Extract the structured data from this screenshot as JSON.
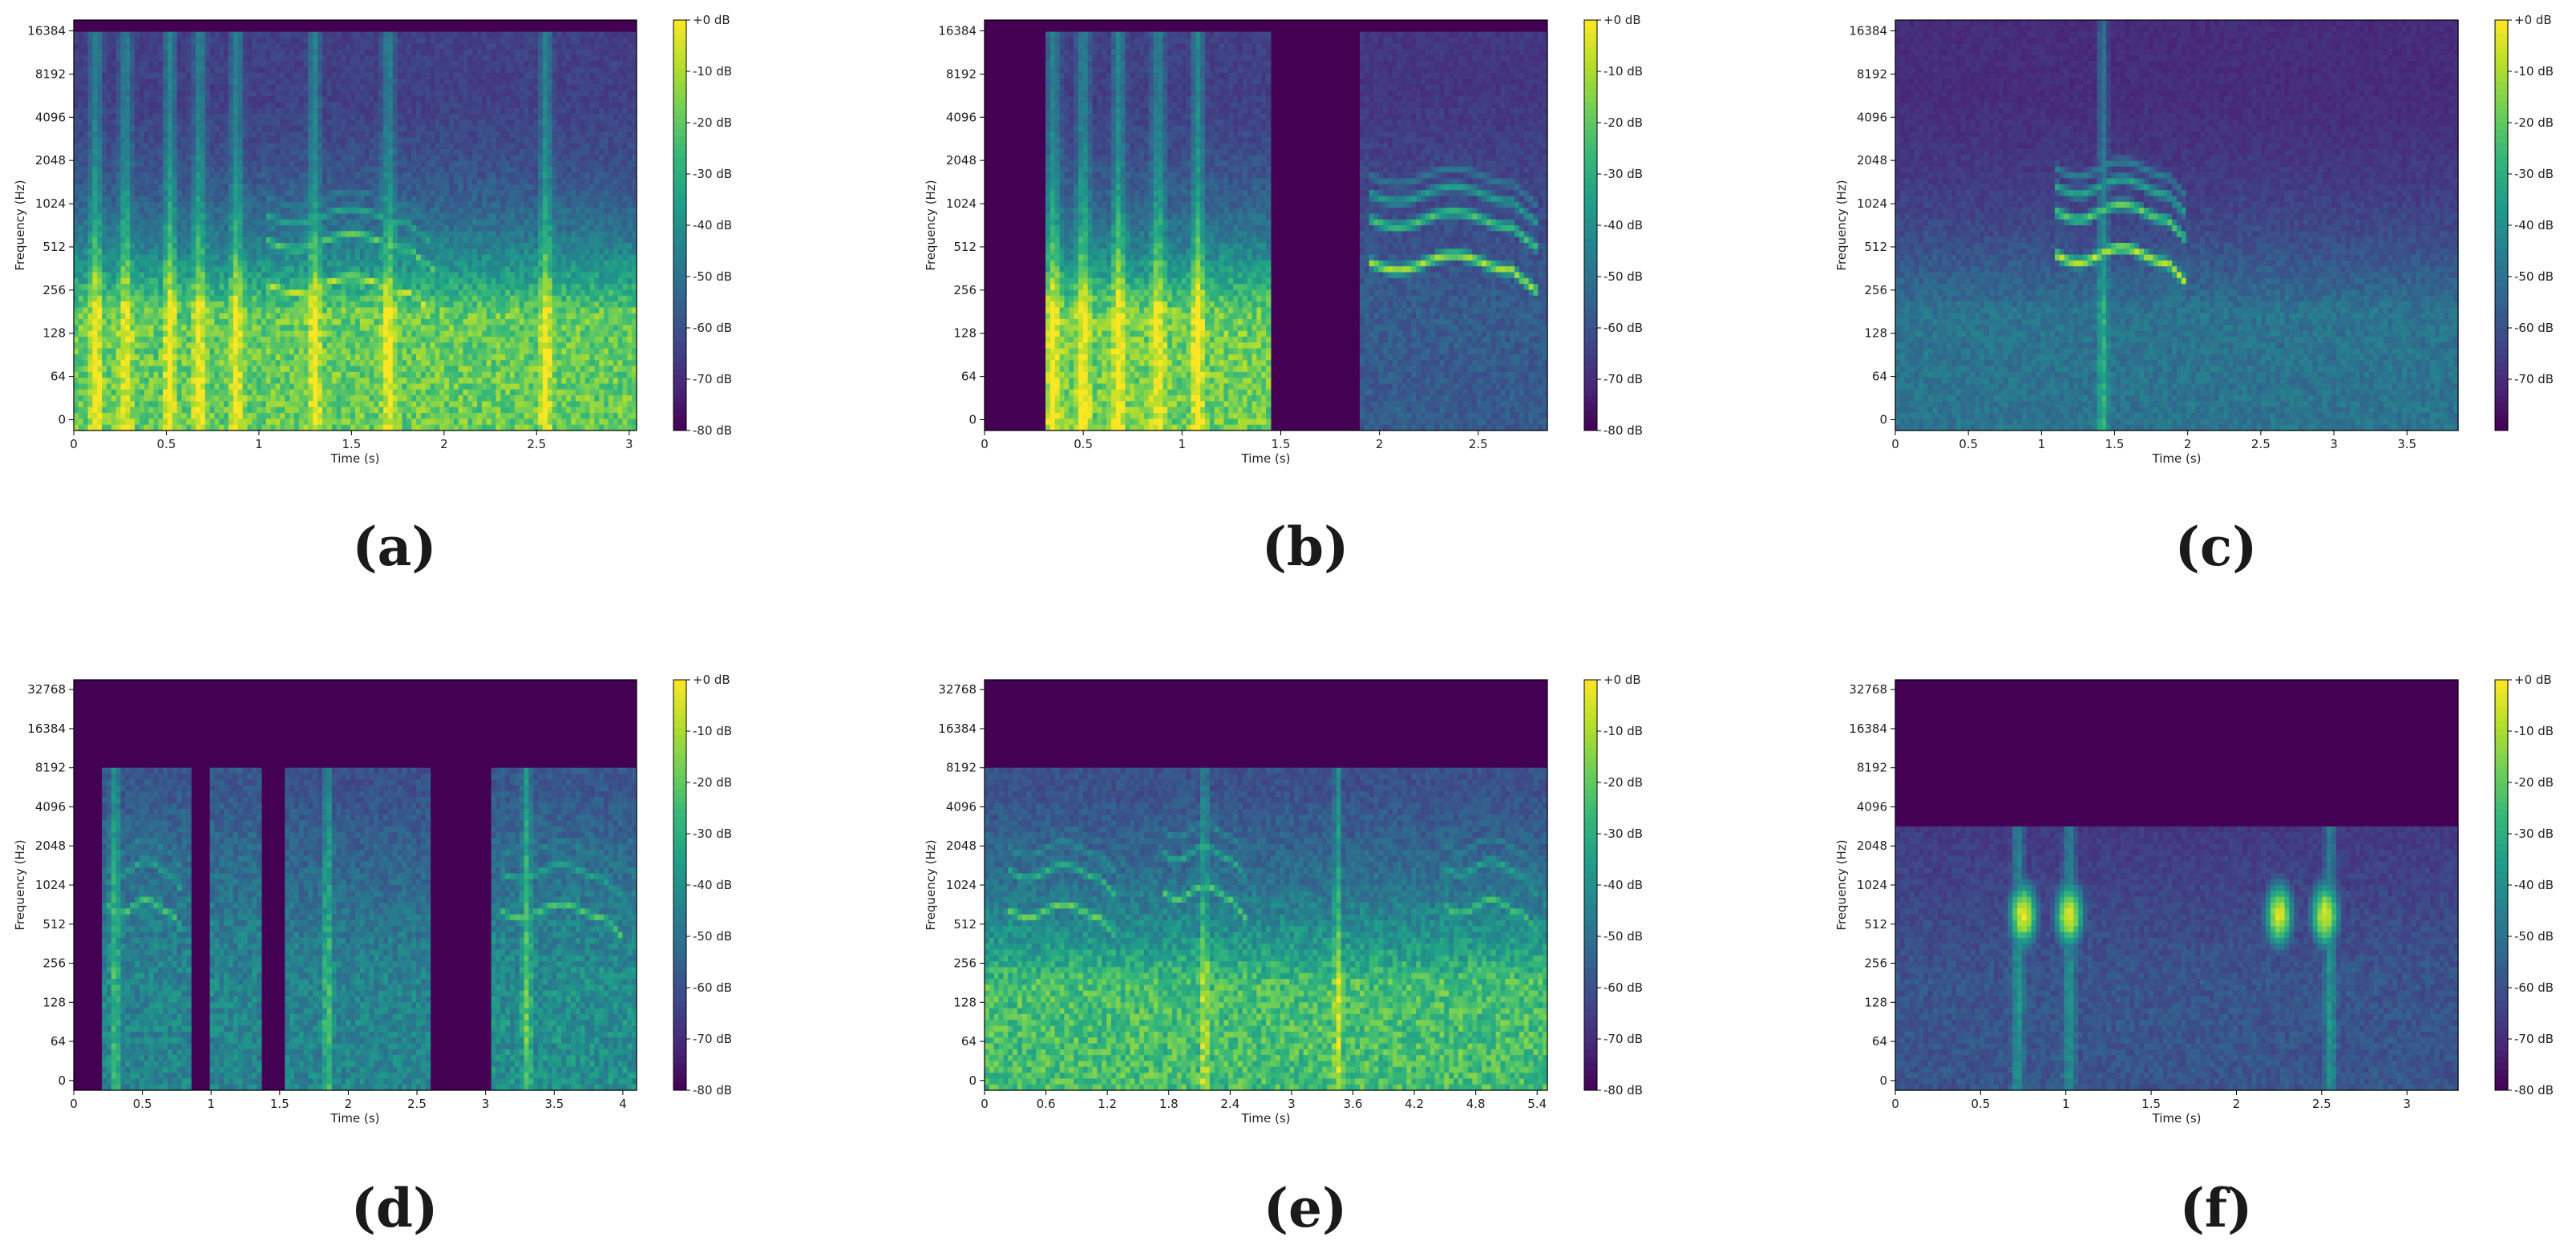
{
  "colors": {
    "background": "#440154",
    "colormap": [
      "#440154",
      "#482878",
      "#3e4989",
      "#31688e",
      "#26828e",
      "#1f9e89",
      "#35b779",
      "#6ece58",
      "#b5de2b",
      "#fde725"
    ]
  },
  "chart_data": [
    {
      "type": "heatmap",
      "caption": "(a)",
      "xlabel": "Time (s)",
      "ylabel": "Frequency (Hz)",
      "x_ticks": [
        "0",
        "0.5",
        "1",
        "1.5",
        "2",
        "2.5",
        "3"
      ],
      "xlim": [
        0,
        3.04
      ],
      "y_ticks": [
        "0",
        "64",
        "128",
        "256",
        "512",
        "1024",
        "2048",
        "4096",
        "8192",
        "16384"
      ],
      "y_scale": "log",
      "colorbar_ticks": [
        "+0 dB",
        "-10 dB",
        "-20 dB",
        "-30 dB",
        "-40 dB",
        "-50 dB",
        "-60 dB",
        "-70 dB",
        "-80 dB"
      ],
      "max_freq": 16384,
      "noise_level": 0.42,
      "low_freq_energy": 0.88,
      "harmonic_segments": [
        {
          "start": 1.05,
          "end": 1.95,
          "f0": 280,
          "level": 0.95
        }
      ],
      "bursts": [
        0.12,
        0.28,
        0.52,
        0.68,
        0.88,
        1.3,
        1.7,
        2.55
      ]
    },
    {
      "type": "heatmap",
      "caption": "(b)",
      "xlabel": "Time (s)",
      "ylabel": "Frequency (Hz)",
      "x_ticks": [
        "0",
        "0.5",
        "1",
        "1.5",
        "2",
        "2.5"
      ],
      "xlim": [
        0,
        2.85
      ],
      "y_ticks": [
        "0",
        "64",
        "128",
        "256",
        "512",
        "1024",
        "2048",
        "4096",
        "8192",
        "16384"
      ],
      "y_scale": "log",
      "colorbar_ticks": [
        "+0 dB",
        "-10 dB",
        "-20 dB",
        "-30 dB",
        "-40 dB",
        "-50 dB",
        "-60 dB",
        "-70 dB",
        "-80 dB"
      ],
      "max_freq": 16384,
      "noise_level": 0.0,
      "low_freq_energy": 0.0,
      "active_regions": [
        {
          "start": 0.3,
          "end": 1.45,
          "low_level": 0.9,
          "high_level": 0.42
        },
        {
          "start": 1.9,
          "end": 2.85,
          "low_level": 0.35,
          "high_level": 0.35
        }
      ],
      "harmonic_segments": [
        {
          "start": 1.95,
          "end": 2.8,
          "f0": 400,
          "level": 0.9
        }
      ],
      "bursts": [
        0.35,
        0.5,
        0.68,
        0.88,
        1.08
      ]
    },
    {
      "type": "heatmap",
      "caption": "(c)",
      "xlabel": "Time (s)",
      "ylabel": "Frequency (Hz)",
      "x_ticks": [
        "0",
        "0.5",
        "1",
        "1.5",
        "2",
        "2.5",
        "3",
        "3.5"
      ],
      "xlim": [
        0,
        3.85
      ],
      "y_ticks": [
        "0",
        "64",
        "128",
        "256",
        "512",
        "1024",
        "2048",
        "4096",
        "8192",
        "16384"
      ],
      "y_scale": "log",
      "colorbar_ticks": [
        "+0 dB",
        "-10 dB",
        "-20 dB",
        "-30 dB",
        "-40 dB",
        "-50 dB",
        "-60 dB",
        "-70 dB"
      ],
      "max_freq": 20000,
      "noise_level": 0.28,
      "low_freq_energy": 0.45,
      "harmonic_segments": [
        {
          "start": 1.1,
          "end": 2.0,
          "f0": 450,
          "level": 0.95
        }
      ],
      "bursts": [
        1.42
      ]
    },
    {
      "type": "heatmap",
      "caption": "(d)",
      "xlabel": "Time (s)",
      "ylabel": "Frequency (Hz)",
      "x_ticks": [
        "0",
        "0.5",
        "1",
        "1.5",
        "2",
        "2.5",
        "3",
        "3.5",
        "4"
      ],
      "xlim": [
        0,
        4.1
      ],
      "y_ticks": [
        "0",
        "64",
        "128",
        "256",
        "512",
        "1024",
        "2048",
        "4096",
        "8192",
        "16384",
        "32768"
      ],
      "y_scale": "log",
      "colorbar_ticks": [
        "+0 dB",
        "-10 dB",
        "-20 dB",
        "-30 dB",
        "-40 dB",
        "-50 dB",
        "-60 dB",
        "-70 dB",
        "-80 dB"
      ],
      "max_freq": 8000,
      "noise_level": 0.3,
      "low_freq_energy": 0.5,
      "active_regions": [
        {
          "start": 0.22,
          "end": 0.85,
          "low_level": 0.55,
          "high_level": 0.6
        },
        {
          "start": 1.0,
          "end": 1.35,
          "low_level": 0.55,
          "high_level": 0.6
        },
        {
          "start": 1.55,
          "end": 2.6,
          "low_level": 0.55,
          "high_level": 0.55
        },
        {
          "start": 3.05,
          "end": 4.1,
          "low_level": 0.6,
          "high_level": 0.6
        }
      ],
      "harmonic_segments": [
        {
          "start": 0.25,
          "end": 0.8,
          "f0": 700,
          "level": 0.75
        },
        {
          "start": 3.1,
          "end": 4.0,
          "f0": 650,
          "level": 0.75
        }
      ],
      "bursts": [
        0.3,
        1.85,
        3.3
      ]
    },
    {
      "type": "heatmap",
      "caption": "(e)",
      "xlabel": "Time (s)",
      "ylabel": "Frequency (Hz)",
      "x_ticks": [
        "0",
        "0.6",
        "1.2",
        "1.8",
        "2.4",
        "3",
        "3.6",
        "4.2",
        "4.8",
        "5.4"
      ],
      "xlim": [
        0,
        5.5
      ],
      "y_ticks": [
        "0",
        "64",
        "128",
        "256",
        "512",
        "1024",
        "2048",
        "4096",
        "8192",
        "16384",
        "32768"
      ],
      "y_scale": "log",
      "colorbar_ticks": [
        "+0 dB",
        "-10 dB",
        "-20 dB",
        "-30 dB",
        "-40 dB",
        "-50 dB",
        "-60 dB",
        "-70 dB",
        "-80 dB"
      ],
      "max_freq": 8000,
      "noise_level": 0.55,
      "low_freq_energy": 0.82,
      "harmonic_segments": [
        {
          "start": 0.25,
          "end": 1.3,
          "f0": 650,
          "level": 0.8
        },
        {
          "start": 1.75,
          "end": 2.55,
          "f0": 900,
          "level": 0.75
        },
        {
          "start": 4.5,
          "end": 5.4,
          "f0": 700,
          "level": 0.75
        }
      ],
      "bursts": [
        2.15,
        3.45
      ]
    },
    {
      "type": "heatmap",
      "caption": "(f)",
      "xlabel": "Time (s)",
      "ylabel": "Frequency (Hz)",
      "x_ticks": [
        "0",
        "0.5",
        "1",
        "1.5",
        "2",
        "2.5",
        "3"
      ],
      "xlim": [
        0,
        3.3
      ],
      "y_ticks": [
        "0",
        "64",
        "128",
        "256",
        "512",
        "1024",
        "2048",
        "4096",
        "8192",
        "16384",
        "32768"
      ],
      "y_scale": "log",
      "colorbar_ticks": [
        "+0 dB",
        "-10 dB",
        "-20 dB",
        "-30 dB",
        "-40 dB",
        "-50 dB",
        "-60 dB",
        "-70 dB",
        "-80 dB"
      ],
      "max_freq": 2800,
      "noise_level": 0.32,
      "low_freq_energy": 0.32,
      "blobs": [
        {
          "t": 0.75,
          "f": 600,
          "level": 0.92
        },
        {
          "t": 1.02,
          "f": 600,
          "level": 0.92
        },
        {
          "t": 2.25,
          "f": 600,
          "level": 0.9
        },
        {
          "t": 2.52,
          "f": 600,
          "level": 0.9
        }
      ],
      "bursts": [
        0.72,
        1.02,
        2.55
      ]
    }
  ]
}
